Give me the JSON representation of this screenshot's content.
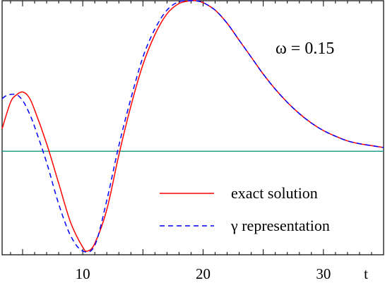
{
  "chart_data": {
    "type": "line",
    "title": "",
    "xlabel": "t",
    "ylabel": "",
    "xlim": [
      3.3,
      35.0
    ],
    "ylim": [
      -0.55,
      0.8
    ],
    "x_ticks": [
      10,
      20,
      30
    ],
    "x_tick_labels": [
      "10",
      "20",
      "30"
    ],
    "grid": false,
    "legend_position": "bottom-right",
    "annotation": "ω = 0.15",
    "baseline_y": 0,
    "series": [
      {
        "name": "exact solution",
        "color": "#ff0000",
        "style": "solid",
        "x": [
          3.3,
          4.0,
          4.5,
          5.0,
          5.5,
          6.0,
          7.0,
          8.0,
          9.0,
          10.0,
          10.4,
          11.0,
          12.0,
          13.0,
          14.0,
          15.0,
          16.0,
          17.0,
          18.0,
          19.0,
          19.4,
          20.0,
          21.0,
          22.0,
          23.0,
          24.0,
          25.0,
          26.0,
          27.0,
          28.0,
          29.0,
          30.0,
          31.0,
          32.0,
          33.0,
          34.0,
          35.0
        ],
        "y": [
          0.12,
          0.26,
          0.3,
          0.315,
          0.29,
          0.22,
          0.04,
          -0.17,
          -0.38,
          -0.51,
          -0.53,
          -0.49,
          -0.31,
          -0.02,
          0.24,
          0.46,
          0.62,
          0.73,
          0.785,
          0.8,
          0.8,
          0.79,
          0.75,
          0.68,
          0.59,
          0.5,
          0.41,
          0.33,
          0.26,
          0.2,
          0.15,
          0.11,
          0.08,
          0.055,
          0.04,
          0.03,
          0.02
        ]
      },
      {
        "name": "γ representation",
        "color": "#0000ff",
        "style": "dashed",
        "x": [
          3.3,
          3.8,
          4.5,
          5.0,
          5.5,
          6.0,
          7.0,
          8.0,
          9.0,
          10.0,
          11.0,
          12.0,
          13.0,
          14.0,
          15.0,
          16.0,
          17.0,
          18.0,
          19.0,
          19.3,
          20.0,
          21.0,
          22.0,
          23.0,
          24.0,
          25.0,
          26.0,
          27.0,
          28.0,
          29.0,
          30.0,
          31.0,
          32.0,
          33.0,
          34.0,
          35.0
        ],
        "y": [
          0.28,
          0.3,
          0.3,
          0.27,
          0.21,
          0.13,
          -0.06,
          -0.28,
          -0.45,
          -0.53,
          -0.5,
          -0.26,
          0.03,
          0.28,
          0.5,
          0.65,
          0.75,
          0.795,
          0.8,
          0.8,
          0.79,
          0.75,
          0.68,
          0.59,
          0.5,
          0.41,
          0.33,
          0.26,
          0.2,
          0.15,
          0.11,
          0.08,
          0.055,
          0.04,
          0.03,
          0.02
        ]
      }
    ]
  },
  "colors": {
    "exact": "#ff0000",
    "gamma": "#0000ff",
    "baseline": "#119988",
    "axis": "#000000"
  }
}
